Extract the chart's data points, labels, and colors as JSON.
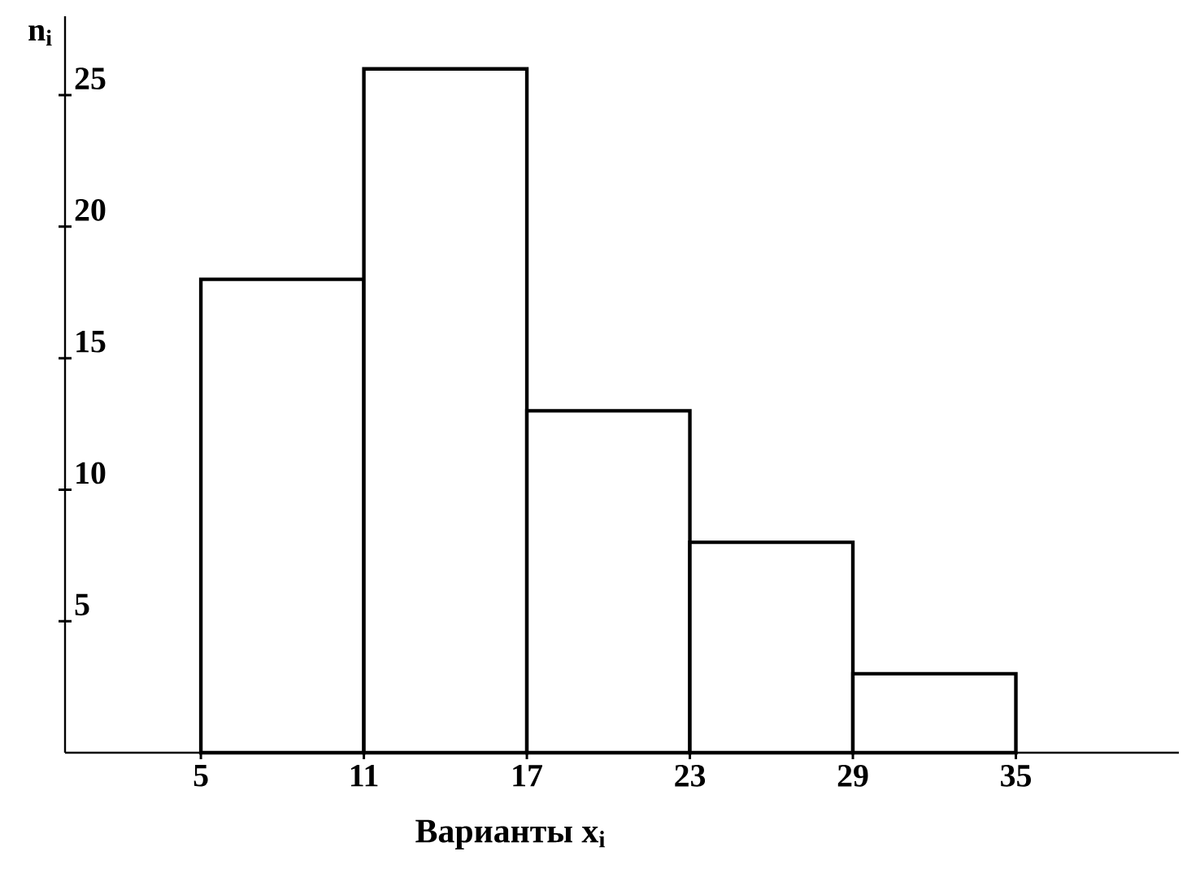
{
  "chart_data": {
    "type": "histogram",
    "xlabel": "Варианты x$_{i}$",
    "ylabel": "n$_{i}$",
    "bins": [
      5,
      11,
      17,
      23,
      29,
      35
    ],
    "values": [
      18,
      26,
      13,
      8,
      3
    ],
    "color": "#ffffff",
    "xlim": [
      0,
      41
    ],
    "ylim": [
      0,
      28
    ],
    "xticks": [
      5,
      11,
      17,
      23,
      29,
      35
    ],
    "yticks": [
      5,
      10,
      15,
      20,
      25
    ]
  }
}
